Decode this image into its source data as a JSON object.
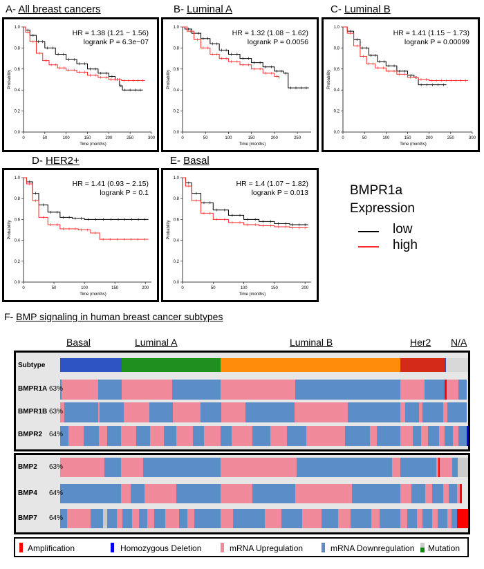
{
  "panels": [
    {
      "id": "A",
      "prefix": "A- ",
      "name": "All breast cancers",
      "hr": "HR = 1.38 (1.21 − 1.56)",
      "p": "logrank P = 6.3e−07",
      "low": [
        [
          0,
          1
        ],
        [
          5,
          0.97
        ],
        [
          15,
          0.92
        ],
        [
          30,
          0.86
        ],
        [
          50,
          0.8
        ],
        [
          75,
          0.74
        ],
        [
          100,
          0.69
        ],
        [
          125,
          0.65
        ],
        [
          150,
          0.6
        ],
        [
          175,
          0.56
        ],
        [
          200,
          0.53
        ],
        [
          215,
          0.5
        ],
        [
          225,
          0.44
        ],
        [
          232,
          0.4
        ],
        [
          280,
          0.4
        ]
      ],
      "high": [
        [
          0,
          1
        ],
        [
          5,
          0.95
        ],
        [
          15,
          0.86
        ],
        [
          30,
          0.75
        ],
        [
          45,
          0.68
        ],
        [
          60,
          0.64
        ],
        [
          80,
          0.61
        ],
        [
          100,
          0.59
        ],
        [
          125,
          0.57
        ],
        [
          150,
          0.54
        ],
        [
          175,
          0.52
        ],
        [
          200,
          0.5
        ],
        [
          230,
          0.49
        ],
        [
          285,
          0.49
        ]
      ]
    },
    {
      "id": "B",
      "prefix": "B- ",
      "name": "Luminal A",
      "hr": "HR = 1.32 (1.08 − 1.62)",
      "p": "logrank P = 0.0056",
      "low": [
        [
          0,
          1
        ],
        [
          5,
          0.98
        ],
        [
          20,
          0.94
        ],
        [
          40,
          0.89
        ],
        [
          60,
          0.84
        ],
        [
          80,
          0.78
        ],
        [
          100,
          0.74
        ],
        [
          125,
          0.7
        ],
        [
          150,
          0.66
        ],
        [
          175,
          0.62
        ],
        [
          200,
          0.58
        ],
        [
          220,
          0.56
        ],
        [
          230,
          0.42
        ],
        [
          275,
          0.42
        ]
      ],
      "high": [
        [
          0,
          1
        ],
        [
          10,
          0.96
        ],
        [
          25,
          0.88
        ],
        [
          40,
          0.8
        ],
        [
          60,
          0.74
        ],
        [
          80,
          0.7
        ],
        [
          100,
          0.67
        ],
        [
          125,
          0.64
        ],
        [
          150,
          0.6
        ],
        [
          175,
          0.56
        ],
        [
          200,
          0.53
        ],
        [
          210,
          0.51
        ]
      ]
    },
    {
      "id": "C",
      "prefix": "C- ",
      "name": "Luminal B",
      "hr": "HR = 1.41 (1.15 − 1.73)",
      "p": "logrank P = 0.00099",
      "low": [
        [
          0,
          1
        ],
        [
          10,
          0.96
        ],
        [
          25,
          0.88
        ],
        [
          40,
          0.8
        ],
        [
          60,
          0.73
        ],
        [
          80,
          0.67
        ],
        [
          100,
          0.63
        ],
        [
          125,
          0.58
        ],
        [
          150,
          0.54
        ],
        [
          165,
          0.52
        ],
        [
          175,
          0.45
        ],
        [
          240,
          0.45
        ]
      ],
      "high": [
        [
          0,
          1
        ],
        [
          10,
          0.94
        ],
        [
          25,
          0.82
        ],
        [
          40,
          0.72
        ],
        [
          55,
          0.65
        ],
        [
          75,
          0.61
        ],
        [
          100,
          0.58
        ],
        [
          125,
          0.55
        ],
        [
          150,
          0.52
        ],
        [
          175,
          0.5
        ],
        [
          200,
          0.49
        ],
        [
          290,
          0.49
        ]
      ]
    },
    {
      "id": "D",
      "prefix": "D- ",
      "name": "HER2+",
      "hr": "HR = 1.41 (0.93 − 2.15)",
      "p": "logrank P = 0.1",
      "low": [
        [
          0,
          1
        ],
        [
          5,
          0.96
        ],
        [
          15,
          0.85
        ],
        [
          25,
          0.74
        ],
        [
          40,
          0.67
        ],
        [
          60,
          0.62
        ],
        [
          80,
          0.61
        ],
        [
          100,
          0.6
        ],
        [
          150,
          0.6
        ],
        [
          205,
          0.6
        ]
      ],
      "high": [
        [
          0,
          1
        ],
        [
          5,
          0.94
        ],
        [
          15,
          0.78
        ],
        [
          25,
          0.62
        ],
        [
          40,
          0.55
        ],
        [
          60,
          0.51
        ],
        [
          90,
          0.5
        ],
        [
          110,
          0.47
        ],
        [
          125,
          0.41
        ],
        [
          205,
          0.41
        ]
      ]
    },
    {
      "id": "E",
      "prefix": "E- ",
      "name": "Basal",
      "hr": "HR = 1.4 (1.07 − 1.82)",
      "p": "logrank P = 0.013",
      "low": [
        [
          0,
          1
        ],
        [
          5,
          0.95
        ],
        [
          15,
          0.85
        ],
        [
          30,
          0.76
        ],
        [
          50,
          0.69
        ],
        [
          75,
          0.64
        ],
        [
          100,
          0.6
        ],
        [
          125,
          0.58
        ],
        [
          150,
          0.56
        ],
        [
          175,
          0.55
        ],
        [
          205,
          0.55
        ]
      ],
      "high": [
        [
          0,
          1
        ],
        [
          5,
          0.92
        ],
        [
          15,
          0.78
        ],
        [
          30,
          0.66
        ],
        [
          50,
          0.6
        ],
        [
          75,
          0.57
        ],
        [
          100,
          0.55
        ],
        [
          125,
          0.54
        ],
        [
          150,
          0.53
        ],
        [
          175,
          0.52
        ],
        [
          205,
          0.52
        ]
      ]
    }
  ],
  "axis": {
    "ylabel": "Probability",
    "xlabel": "Time (months)"
  },
  "legend": {
    "title": "BMPR1a",
    "subtitle": "Expression",
    "low": "low",
    "high": "high"
  },
  "section_f": {
    "prefix": "F- ",
    "title": "BMP signaling in human breast cancer subtypes"
  },
  "groups": [
    "Basal",
    "Luminal A",
    "Luminal B",
    "Her2",
    "N/A"
  ],
  "subtype_label": "Subtype",
  "rows1": [
    {
      "name": "BMPR1A",
      "pct": "63%"
    },
    {
      "name": "BMPR1B",
      "pct": "63%"
    },
    {
      "name": "BMPR2",
      "pct": "64%"
    }
  ],
  "rows2": [
    {
      "name": "BMP2",
      "pct": "63%"
    },
    {
      "name": "BMP4",
      "pct": "64%"
    },
    {
      "name": "BMP7",
      "pct": "64%"
    }
  ],
  "onco_legend": [
    "Amplification",
    "Homozygous Deletion",
    "mRNA Upregulation",
    "mRNA Downregulation",
    "Mutation"
  ],
  "colors": {
    "low": "#000000",
    "high": "#ff2a2a",
    "basal": "#2e54c4",
    "luminalA": "#1f8f1f",
    "luminalB": "#ff8c0a",
    "her2": "#d42a1a",
    "na": "#d8d8d8",
    "up": "#f0899a",
    "down": "#5b8ec9",
    "amp": "#ff0000",
    "del": "#0000ee",
    "mut": "#0d870d",
    "mutgray": "#cccccc"
  }
}
